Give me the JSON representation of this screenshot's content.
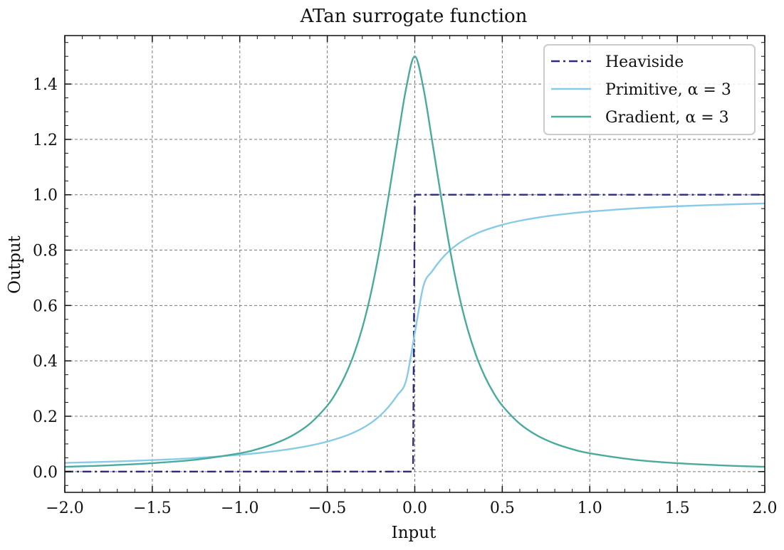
{
  "chart_data": {
    "type": "line",
    "title": "ATan surrogate function",
    "xlabel": "Input",
    "ylabel": "Output",
    "xlim": [
      -2.0,
      2.0
    ],
    "ylim": [
      -0.075,
      1.575
    ],
    "xticks": [
      -2.0,
      -1.5,
      -1.0,
      -0.5,
      0.0,
      0.5,
      1.0,
      1.5,
      2.0
    ],
    "xtick_labels": [
      "−2.0",
      "−1.5",
      "−1.0",
      "−0.5",
      "0.0",
      "0.5",
      "1.0",
      "1.5",
      "2.0"
    ],
    "yticks": [
      0.0,
      0.2,
      0.4,
      0.6,
      0.8,
      1.0,
      1.2,
      1.4
    ],
    "ytick_labels": [
      "0.0",
      "0.2",
      "0.4",
      "0.6",
      "0.8",
      "1.0",
      "1.2",
      "1.4"
    ],
    "grid": true,
    "legend_position": "top-right",
    "series": [
      {
        "name": "Heaviside",
        "color": "#2e2a80",
        "linestyle": "dashdot",
        "x": [
          -2.0,
          -1.5,
          -1.0,
          -0.5,
          -0.01,
          0.0,
          0.01,
          0.5,
          1.0,
          1.5,
          2.0
        ],
        "y": [
          0.0,
          0.0,
          0.0,
          0.0,
          0.0,
          1.0,
          1.0,
          1.0,
          1.0,
          1.0,
          1.0
        ]
      },
      {
        "name": "Primitive, α = 3",
        "color": "#88cbe8",
        "linestyle": "solid",
        "x": [
          -2.0,
          -1.75,
          -1.5,
          -1.25,
          -1.0,
          -0.9,
          -0.8,
          -0.7,
          -0.6,
          -0.5,
          -0.4,
          -0.35,
          -0.3,
          -0.25,
          -0.2,
          -0.15,
          -0.1,
          -0.05,
          0.0,
          0.05,
          0.1,
          0.15,
          0.2,
          0.25,
          0.3,
          0.35,
          0.4,
          0.5,
          0.6,
          0.7,
          0.8,
          0.9,
          1.0,
          1.25,
          1.5,
          1.75,
          2.0
        ],
        "y": [
          0.0315,
          0.0358,
          0.0415,
          0.0493,
          0.0608,
          0.0667,
          0.0739,
          0.0827,
          0.0939,
          0.1085,
          0.1281,
          0.1409,
          0.1565,
          0.1761,
          0.2012,
          0.2338,
          0.2756,
          0.3281,
          0.5,
          0.6719,
          0.7244,
          0.7662,
          0.7988,
          0.8239,
          0.8435,
          0.8591,
          0.8719,
          0.8915,
          0.9061,
          0.9173,
          0.9261,
          0.9333,
          0.9392,
          0.9507,
          0.9585,
          0.9642,
          0.9685
        ]
      },
      {
        "name": "Gradient, α = 3",
        "color": "#4aab9c",
        "linestyle": "solid",
        "x": [
          -2.0,
          -1.75,
          -1.5,
          -1.25,
          -1.0,
          -0.9,
          -0.8,
          -0.7,
          -0.6,
          -0.5,
          -0.45,
          -0.4,
          -0.35,
          -0.3,
          -0.25,
          -0.2,
          -0.15,
          -0.1,
          -0.05,
          0.0,
          0.05,
          0.1,
          0.15,
          0.2,
          0.25,
          0.3,
          0.35,
          0.4,
          0.45,
          0.5,
          0.6,
          0.7,
          0.8,
          0.9,
          1.0,
          1.25,
          1.5,
          1.75,
          2.0
        ],
        "y": [
          0.0173,
          0.0225,
          0.0304,
          0.0432,
          0.0662,
          0.081,
          0.1014,
          0.1302,
          0.1729,
          0.2383,
          0.2848,
          0.3441,
          0.4202,
          0.5189,
          0.6462,
          0.8064,
          0.9941,
          1.1909,
          1.3829,
          1.5,
          1.3829,
          1.1909,
          0.9941,
          0.8064,
          0.6462,
          0.5189,
          0.4202,
          0.3441,
          0.2848,
          0.2383,
          0.1729,
          0.1302,
          0.1014,
          0.081,
          0.0662,
          0.0432,
          0.0304,
          0.0225,
          0.0173
        ]
      }
    ]
  }
}
